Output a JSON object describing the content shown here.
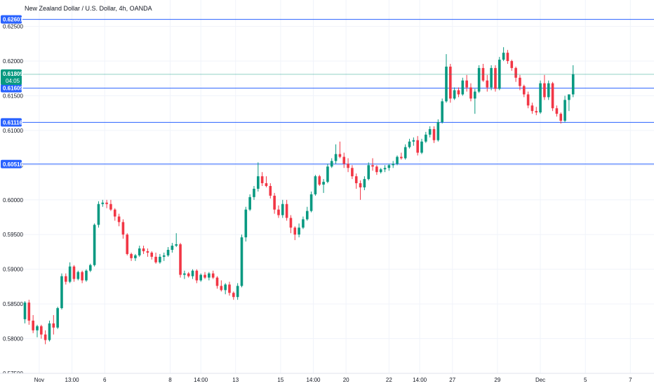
{
  "title": "New Zealand Dollar / U.S. Dollar, 4h, OANDA",
  "colors": {
    "up": "#089981",
    "down": "#f23645",
    "level_line": "#2962ff",
    "tag_bg": "#2962ff",
    "price_tag_bg": "#089981",
    "grid": "#f0f3fa",
    "background": "#ffffff",
    "text": "#131722"
  },
  "chart_data": {
    "type": "candlestick",
    "title": "New Zealand Dollar / U.S. Dollar, 4h, OANDA",
    "ylim": [
      0.575,
      0.6288
    ],
    "y_ticks": [
      "0.62500",
      "0.62000",
      "0.61500",
      "0.61000",
      "0.60500",
      "0.60000",
      "0.59500",
      "0.59000",
      "0.58500",
      "0.58000",
      "0.57500"
    ],
    "y_tick_values": [
      0.625,
      0.62,
      0.615,
      0.61,
      0.605,
      0.6,
      0.595,
      0.59,
      0.585,
      0.58,
      0.575
    ],
    "x_ticks": [
      {
        "label": "Nov",
        "bar": 3.5
      },
      {
        "label": "13:00",
        "bar": 11.5
      },
      {
        "label": "6",
        "bar": 19.5
      },
      {
        "label": "8",
        "bar": 35.5
      },
      {
        "label": "14:00",
        "bar": 43
      },
      {
        "label": "13",
        "bar": 51.5
      },
      {
        "label": "15",
        "bar": 62.5
      },
      {
        "label": "14:00",
        "bar": 70.5
      },
      {
        "label": "20",
        "bar": 78.5
      },
      {
        "label": "22",
        "bar": 89
      },
      {
        "label": "14:00",
        "bar": 96.5
      },
      {
        "label": "27",
        "bar": 104.5
      },
      {
        "label": "29",
        "bar": 115.5
      },
      {
        "label": "Dec",
        "bar": 126
      },
      {
        "label": "5",
        "bar": 137
      },
      {
        "label": "7",
        "bar": 148
      }
    ],
    "level_lines": [
      {
        "label": "0.62601",
        "value": 0.62601
      },
      {
        "label": "0.61609",
        "value": 0.61609
      },
      {
        "label": "0.61116",
        "value": 0.61116
      },
      {
        "label": "0.60516",
        "value": 0.60516
      }
    ],
    "current_price": {
      "value": 0.61809,
      "label": "0.61809",
      "countdown": "04:05"
    },
    "candles": [
      [
        0.5828,
        0.5854,
        0.5822,
        0.5852
      ],
      [
        0.5852,
        0.5856,
        0.582,
        0.5826
      ],
      [
        0.5826,
        0.5834,
        0.5808,
        0.5812
      ],
      [
        0.5812,
        0.582,
        0.5802,
        0.5818
      ],
      [
        0.5818,
        0.582,
        0.58,
        0.5806
      ],
      [
        0.5806,
        0.5812,
        0.5792,
        0.5798
      ],
      [
        0.5798,
        0.5826,
        0.5796,
        0.5822
      ],
      [
        0.5822,
        0.5834,
        0.5806,
        0.5816
      ],
      [
        0.5816,
        0.5846,
        0.5814,
        0.5844
      ],
      [
        0.5844,
        0.5894,
        0.5842,
        0.589
      ],
      [
        0.589,
        0.5894,
        0.5878,
        0.5882
      ],
      [
        0.5882,
        0.591,
        0.588,
        0.5904
      ],
      [
        0.5904,
        0.5906,
        0.5882,
        0.5886
      ],
      [
        0.5886,
        0.5898,
        0.5884,
        0.5896
      ],
      [
        0.5896,
        0.5898,
        0.588,
        0.5884
      ],
      [
        0.5884,
        0.59,
        0.5882,
        0.5898
      ],
      [
        0.5898,
        0.5908,
        0.5896,
        0.5906
      ],
      [
        0.5906,
        0.5966,
        0.5904,
        0.5964
      ],
      [
        0.5964,
        0.5998,
        0.596,
        0.5994
      ],
      [
        0.5994,
        0.6,
        0.599,
        0.5996
      ],
      [
        0.5996,
        0.6,
        0.5988,
        0.5994
      ],
      [
        0.5994,
        0.6,
        0.5984,
        0.5986
      ],
      [
        0.5986,
        0.5988,
        0.597,
        0.5976
      ],
      [
        0.5976,
        0.598,
        0.5962,
        0.5968
      ],
      [
        0.5968,
        0.5972,
        0.5944,
        0.595
      ],
      [
        0.595,
        0.5952,
        0.592,
        0.5922
      ],
      [
        0.5922,
        0.5924,
        0.5912,
        0.5916
      ],
      [
        0.5916,
        0.5922,
        0.5912,
        0.592
      ],
      [
        0.592,
        0.5934,
        0.5918,
        0.593
      ],
      [
        0.593,
        0.5934,
        0.5922,
        0.5926
      ],
      [
        0.5926,
        0.593,
        0.5918,
        0.5924
      ],
      [
        0.5924,
        0.5926,
        0.5914,
        0.5918
      ],
      [
        0.5918,
        0.5924,
        0.5908,
        0.591
      ],
      [
        0.591,
        0.5922,
        0.5908,
        0.5918
      ],
      [
        0.5918,
        0.5924,
        0.5912,
        0.592
      ],
      [
        0.592,
        0.5932,
        0.5918,
        0.5928
      ],
      [
        0.5928,
        0.5938,
        0.5924,
        0.5934
      ],
      [
        0.5934,
        0.5952,
        0.5932,
        0.5936
      ],
      [
        0.5936,
        0.5938,
        0.5888,
        0.5892
      ],
      [
        0.5892,
        0.5898,
        0.5886,
        0.5894
      ],
      [
        0.5894,
        0.5896,
        0.5888,
        0.589
      ],
      [
        0.589,
        0.59,
        0.5886,
        0.5898
      ],
      [
        0.5898,
        0.59,
        0.588,
        0.5884
      ],
      [
        0.5884,
        0.5894,
        0.5882,
        0.5892
      ],
      [
        0.5892,
        0.5896,
        0.5886,
        0.5888
      ],
      [
        0.5888,
        0.5896,
        0.5884,
        0.5894
      ],
      [
        0.5894,
        0.5898,
        0.5886,
        0.5888
      ],
      [
        0.5888,
        0.589,
        0.5872,
        0.5876
      ],
      [
        0.5876,
        0.5884,
        0.5868,
        0.587
      ],
      [
        0.587,
        0.588,
        0.5864,
        0.5878
      ],
      [
        0.5878,
        0.5882,
        0.5862,
        0.5866
      ],
      [
        0.5866,
        0.5868,
        0.5856,
        0.586
      ],
      [
        0.586,
        0.588,
        0.5856,
        0.5876
      ],
      [
        0.5876,
        0.595,
        0.5874,
        0.5946
      ],
      [
        0.5946,
        0.599,
        0.594,
        0.5986
      ],
      [
        0.5986,
        0.6008,
        0.5984,
        0.6004
      ],
      [
        0.6004,
        0.602,
        0.6,
        0.6016
      ],
      [
        0.6016,
        0.6054,
        0.6012,
        0.6034
      ],
      [
        0.6034,
        0.604,
        0.602,
        0.6024
      ],
      [
        0.6024,
        0.6034,
        0.6018,
        0.602
      ],
      [
        0.602,
        0.6024,
        0.6002,
        0.6006
      ],
      [
        0.6006,
        0.601,
        0.598,
        0.5986
      ],
      [
        0.5986,
        0.5992,
        0.5974,
        0.5978
      ],
      [
        0.5978,
        0.6,
        0.5974,
        0.5994
      ],
      [
        0.5994,
        0.6,
        0.597,
        0.5974
      ],
      [
        0.5974,
        0.5978,
        0.5952,
        0.596
      ],
      [
        0.596,
        0.5962,
        0.5942,
        0.595
      ],
      [
        0.595,
        0.5966,
        0.5946,
        0.596
      ],
      [
        0.596,
        0.5976,
        0.5958,
        0.5972
      ],
      [
        0.5972,
        0.599,
        0.597,
        0.5984
      ],
      [
        0.5984,
        0.6012,
        0.5982,
        0.6008
      ],
      [
        0.6008,
        0.6036,
        0.6006,
        0.6034
      ],
      [
        0.6034,
        0.6036,
        0.602,
        0.6022
      ],
      [
        0.6022,
        0.603,
        0.601,
        0.6026
      ],
      [
        0.6026,
        0.6052,
        0.6024,
        0.6048
      ],
      [
        0.6048,
        0.606,
        0.6046,
        0.6056
      ],
      [
        0.6056,
        0.608,
        0.6052,
        0.6066
      ],
      [
        0.6066,
        0.6084,
        0.606,
        0.6062
      ],
      [
        0.6062,
        0.6068,
        0.6046,
        0.6052
      ],
      [
        0.6052,
        0.606,
        0.604,
        0.6046
      ],
      [
        0.6046,
        0.605,
        0.603,
        0.6034
      ],
      [
        0.6034,
        0.6038,
        0.6016,
        0.6024
      ],
      [
        0.6024,
        0.6028,
        0.6,
        0.6018
      ],
      [
        0.6018,
        0.6034,
        0.6014,
        0.603
      ],
      [
        0.603,
        0.6054,
        0.6028,
        0.605
      ],
      [
        0.605,
        0.606,
        0.6042,
        0.6048
      ],
      [
        0.6048,
        0.605,
        0.6036,
        0.604
      ],
      [
        0.604,
        0.6046,
        0.6038,
        0.6044
      ],
      [
        0.6044,
        0.605,
        0.604,
        0.6046
      ],
      [
        0.6046,
        0.6052,
        0.6042,
        0.605
      ],
      [
        0.605,
        0.6056,
        0.6046,
        0.6052
      ],
      [
        0.6052,
        0.6064,
        0.605,
        0.6062
      ],
      [
        0.6062,
        0.6068,
        0.6058,
        0.606
      ],
      [
        0.606,
        0.608,
        0.6058,
        0.6076
      ],
      [
        0.6076,
        0.6088,
        0.6074,
        0.6084
      ],
      [
        0.6084,
        0.609,
        0.6078,
        0.6086
      ],
      [
        0.6086,
        0.6092,
        0.6064,
        0.6068
      ],
      [
        0.6068,
        0.6088,
        0.6066,
        0.6084
      ],
      [
        0.6084,
        0.6098,
        0.6082,
        0.6094
      ],
      [
        0.6094,
        0.6106,
        0.609,
        0.6102
      ],
      [
        0.6102,
        0.6106,
        0.6082,
        0.6086
      ],
      [
        0.6086,
        0.6116,
        0.6084,
        0.6112
      ],
      [
        0.6112,
        0.6146,
        0.611,
        0.6142
      ],
      [
        0.6142,
        0.621,
        0.614,
        0.6192
      ],
      [
        0.6192,
        0.6196,
        0.614,
        0.6146
      ],
      [
        0.6146,
        0.6162,
        0.6144,
        0.6158
      ],
      [
        0.6158,
        0.6162,
        0.6148,
        0.6152
      ],
      [
        0.6152,
        0.6176,
        0.615,
        0.6172
      ],
      [
        0.6172,
        0.618,
        0.6156,
        0.6162
      ],
      [
        0.6162,
        0.6168,
        0.6142,
        0.6146
      ],
      [
        0.6146,
        0.616,
        0.6124,
        0.6156
      ],
      [
        0.6156,
        0.6194,
        0.6154,
        0.619
      ],
      [
        0.619,
        0.6196,
        0.617,
        0.6172
      ],
      [
        0.6172,
        0.618,
        0.6156,
        0.6162
      ],
      [
        0.6162,
        0.6194,
        0.6158,
        0.619
      ],
      [
        0.619,
        0.6194,
        0.6156,
        0.616
      ],
      [
        0.616,
        0.6206,
        0.6158,
        0.6202
      ],
      [
        0.6202,
        0.622,
        0.62,
        0.6212
      ],
      [
        0.6212,
        0.6216,
        0.6196,
        0.62
      ],
      [
        0.62,
        0.6202,
        0.6186,
        0.619
      ],
      [
        0.619,
        0.6192,
        0.617,
        0.6176
      ],
      [
        0.6176,
        0.618,
        0.6158,
        0.6164
      ],
      [
        0.6164,
        0.6166,
        0.6148,
        0.6152
      ],
      [
        0.6152,
        0.6156,
        0.6132,
        0.6136
      ],
      [
        0.6136,
        0.614,
        0.6124,
        0.6128
      ],
      [
        0.6128,
        0.6134,
        0.6122,
        0.6126
      ],
      [
        0.6126,
        0.6172,
        0.6124,
        0.6168
      ],
      [
        0.6168,
        0.618,
        0.6144,
        0.6148
      ],
      [
        0.6148,
        0.6172,
        0.6144,
        0.6168
      ],
      [
        0.6168,
        0.617,
        0.6128,
        0.6132
      ],
      [
        0.6132,
        0.6136,
        0.612,
        0.6124
      ],
      [
        0.6124,
        0.6126,
        0.611,
        0.6114
      ],
      [
        0.6114,
        0.615,
        0.6112,
        0.6144
      ],
      [
        0.6144,
        0.615,
        0.6128,
        0.6152
      ],
      [
        0.6152,
        0.6194,
        0.6148,
        0.6181
      ]
    ]
  }
}
